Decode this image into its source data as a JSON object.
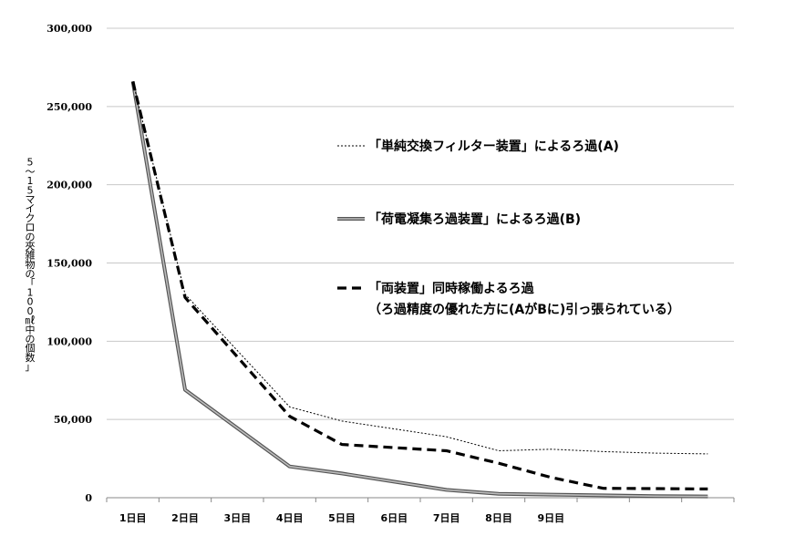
{
  "chart_data": {
    "type": "line",
    "title": "",
    "xlabel": "",
    "ylabel": "5～15マイクロの夾雑物の「100㎖中の個数」",
    "ylim": [
      0,
      300000
    ],
    "yticks": [
      0,
      50000,
      100000,
      150000,
      200000,
      250000,
      300000
    ],
    "ytick_labels": [
      "0",
      "50,000",
      "100,000",
      "150,000",
      "200,000",
      "250,000",
      "300,000"
    ],
    "categories": [
      "1日目",
      "2日目",
      "3日目",
      "4日目",
      "5日目",
      "6日目",
      "7日目",
      "8日目",
      "9日目",
      "",
      "",
      ""
    ],
    "grid": true,
    "legend_placement": "right",
    "series": [
      {
        "name": "「単純交換フィルター装置」によるろ過(A)",
        "style": "dotted",
        "color": "#000000",
        "values": [
          266000,
          130000,
          null,
          58000,
          49000,
          null,
          39000,
          30000,
          31000,
          29500,
          28500,
          28000
        ]
      },
      {
        "name": "「荷電凝集ろ過装置」によるろ過(B)",
        "style": "double-gray",
        "color": "#808080",
        "values": [
          266000,
          69000,
          null,
          20000,
          15500,
          null,
          5000,
          2500,
          2000,
          1500,
          1000,
          800
        ]
      },
      {
        "name": "「両装置」同時稼働よるろ過",
        "name_line2": "（ろ過精度の優れた方に(AがBに)引っ張られている）",
        "style": "dashed",
        "color": "#000000",
        "values": [
          266000,
          128000,
          null,
          52000,
          34000,
          null,
          30000,
          22000,
          13000,
          6000,
          5800,
          5600
        ]
      }
    ]
  }
}
